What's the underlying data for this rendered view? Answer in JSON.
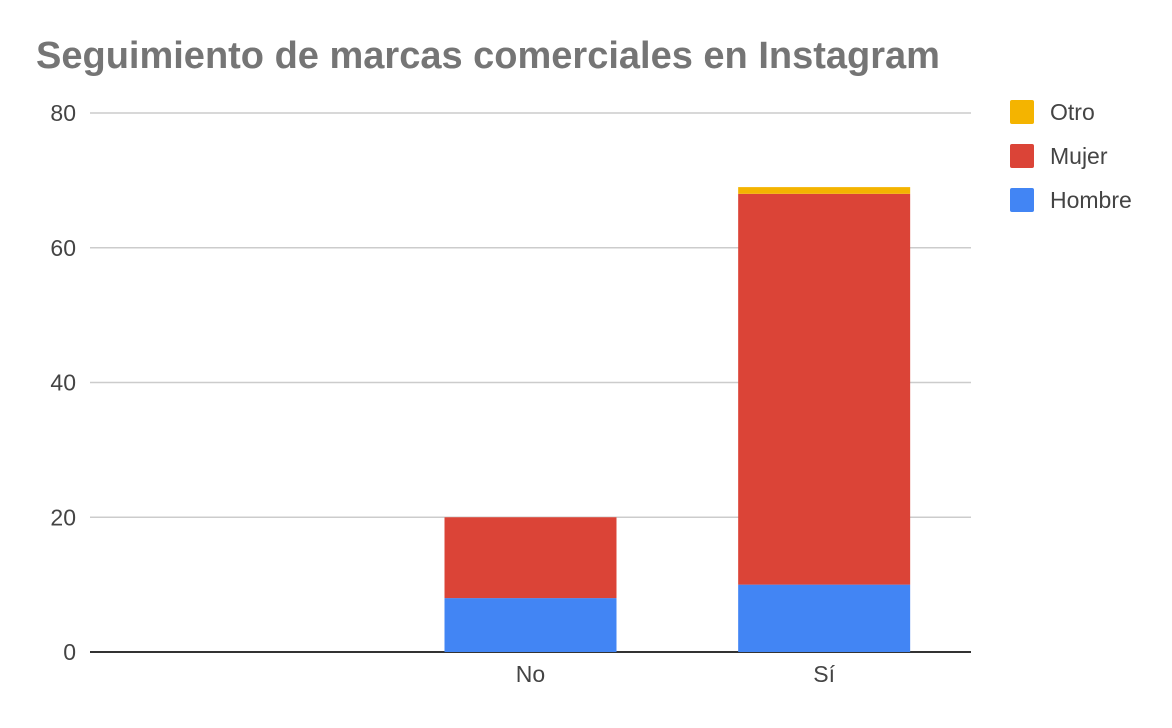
{
  "chart_data": {
    "type": "bar",
    "stacked": true,
    "title": "Seguimiento de marcas comerciales en Instagram",
    "xlabel": "",
    "ylabel": "",
    "categories": [
      "",
      "No",
      "Sí"
    ],
    "ylim": [
      0,
      80
    ],
    "yticks": [
      "0",
      "20",
      "40",
      "60",
      "80"
    ],
    "grid": true,
    "legend_position": "right",
    "series": [
      {
        "name": "Hombre",
        "values": [
          0,
          8,
          10
        ],
        "color": "#4285f4"
      },
      {
        "name": "Mujer",
        "values": [
          0,
          12,
          58
        ],
        "color": "#db4437"
      },
      {
        "name": "Otro",
        "values": [
          0,
          0,
          1
        ],
        "color": "#f4b400"
      }
    ],
    "legend_order": [
      "Otro",
      "Mujer",
      "Hombre"
    ]
  }
}
